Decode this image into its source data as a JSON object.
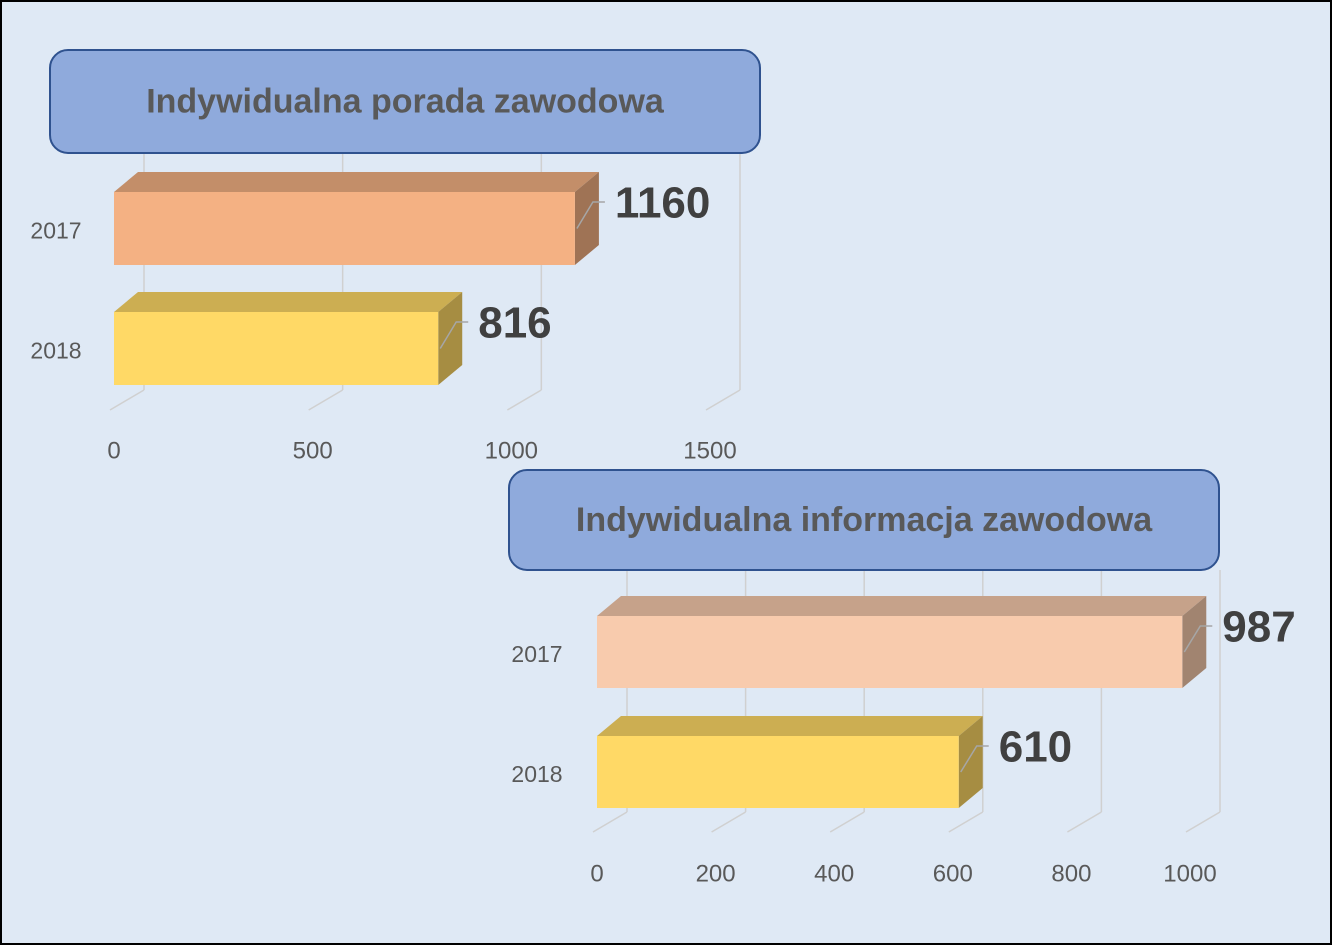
{
  "chart_data": [
    {
      "type": "bar3d-horizontal",
      "title": "Indywidualna porada zawodowa",
      "categories": [
        "2017",
        "2018"
      ],
      "values": [
        1160,
        816
      ],
      "colors": [
        "#f4b183",
        "#ffd966"
      ],
      "xlim": [
        0,
        1500
      ],
      "xticks": [
        0,
        500,
        1000,
        1500
      ],
      "grid": true
    },
    {
      "type": "bar3d-horizontal",
      "title": "Indywidualna informacja zawodowa",
      "categories": [
        "2017",
        "2018"
      ],
      "values": [
        987,
        610
      ],
      "colors": [
        "#f8cbad",
        "#ffd966"
      ],
      "xlim": [
        0,
        1000
      ],
      "xticks": [
        0,
        200,
        400,
        600,
        800,
        1000
      ],
      "grid": true
    }
  ]
}
